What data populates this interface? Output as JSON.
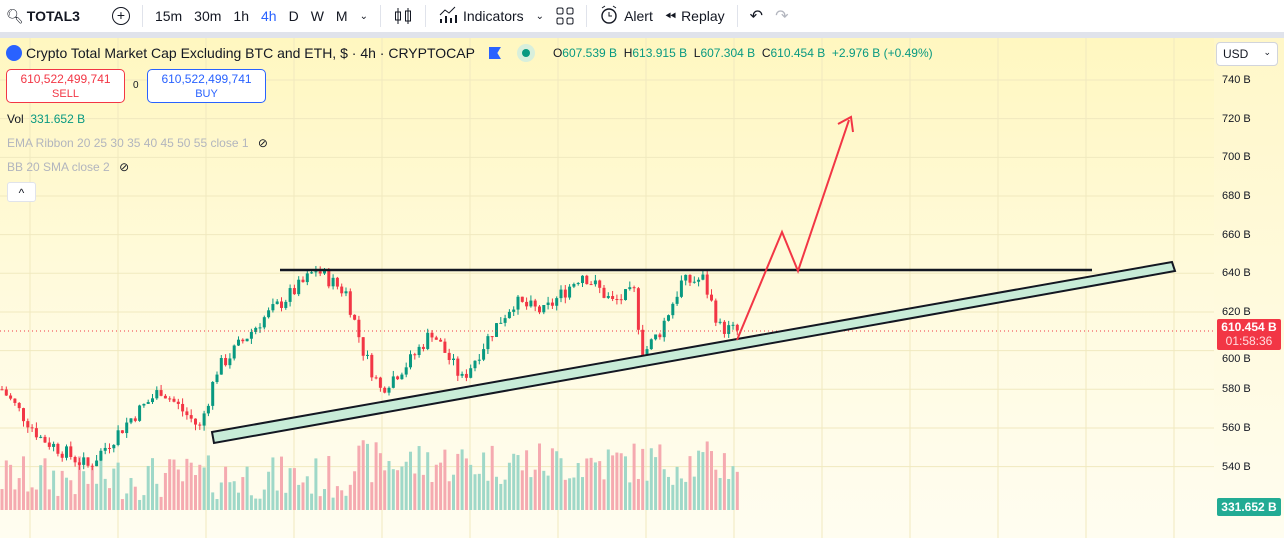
{
  "toolbar": {
    "symbol": "TOTAL3",
    "intervals": [
      "15m",
      "30m",
      "1h",
      "4h",
      "D",
      "W",
      "M"
    ],
    "active_interval": "4h",
    "indicators": "Indicators",
    "alert": "Alert",
    "replay": "Replay"
  },
  "legend": {
    "title": "Crypto Total Market Cap Excluding BTC and ETH, $ · 4h · CRYPTOCAP",
    "o_label": "O",
    "o": "607.539 B",
    "h_label": "H",
    "h": "613.915 B",
    "l_label": "L",
    "l": "607.304 B",
    "c_label": "C",
    "c": "610.454 B",
    "change": "+2.976 B (+0.49%)"
  },
  "trade": {
    "sell_price": "610,522,499,741",
    "sell_label": "SELL",
    "spread": "0",
    "buy_price": "610,522,499,741",
    "buy_label": "BUY"
  },
  "indicators": {
    "vol_label": "Vol",
    "vol_value": "331.652 B",
    "ema": "EMA Ribbon 20 25 30 35 40 45 50 55 close 1",
    "bb": "BB 20 SMA close 2",
    "collapse": "^"
  },
  "axis": {
    "currency": "USD",
    "ticks": [
      "740 B",
      "720 B",
      "700 B",
      "680 B",
      "660 B",
      "640 B",
      "620 B",
      "600 B",
      "580 B",
      "560 B",
      "540 B"
    ],
    "price_label": "610.454 B",
    "countdown": "01:58:36",
    "volume_label": "331.652 B"
  },
  "colors": {
    "up": "#089981",
    "down": "#f23645",
    "accent": "#2962ff"
  },
  "chart_data": {
    "type": "candlestick",
    "ylim": [
      530,
      750
    ],
    "unit": "B USD",
    "last_close": 610.454,
    "path": [
      [
        0,
        580
      ],
      [
        9,
        555
      ],
      [
        20,
        540
      ],
      [
        30,
        565
      ],
      [
        37,
        580
      ],
      [
        46,
        560
      ],
      [
        50,
        590
      ],
      [
        60,
        615
      ],
      [
        70,
        635
      ],
      [
        73,
        642
      ],
      [
        80,
        630
      ],
      [
        84,
        600
      ],
      [
        88,
        580
      ],
      [
        95,
        595
      ],
      [
        100,
        610
      ],
      [
        107,
        585
      ],
      [
        114,
        610
      ],
      [
        119,
        625
      ],
      [
        126,
        620
      ],
      [
        135,
        640
      ],
      [
        142,
        625
      ],
      [
        147,
        630
      ],
      [
        149,
        598
      ],
      [
        153,
        610
      ],
      [
        158,
        635
      ],
      [
        163,
        637
      ],
      [
        167,
        612
      ],
      [
        171,
        610
      ]
    ]
  }
}
